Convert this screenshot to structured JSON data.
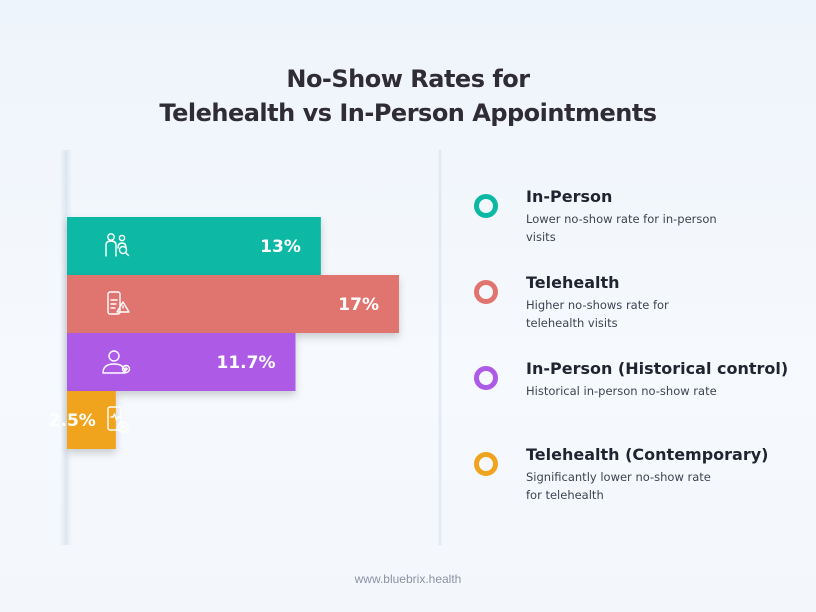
{
  "header": {
    "title_line1": "No-Show Rates for",
    "title_line2": "Telehealth vs In-Person Appointments"
  },
  "chart_data": {
    "type": "bar",
    "orientation": "horizontal",
    "categories": [
      "In-Person",
      "Telehealth",
      "In-Person (Historical control)",
      "Telehealth (Contemporary)"
    ],
    "values": [
      13,
      17,
      11.7,
      2.5
    ],
    "value_labels": [
      "13%",
      "17%",
      "11.7%",
      "2.5%"
    ],
    "colors": [
      "#0bb8a4",
      "#e0756f",
      "#ad5ae6",
      "#f0a31e"
    ],
    "icons": [
      "doctor-search-icon",
      "mobile-alert-icon",
      "doctor-icon",
      "mobile-medical-icon"
    ],
    "xlim": [
      0,
      17
    ],
    "grid": false,
    "legend_placement": "right"
  },
  "legend": {
    "items": [
      {
        "name": "In-Person",
        "desc": "Lower no-show rate for in-person visits",
        "color": "#0bb8a4"
      },
      {
        "name": "Telehealth",
        "desc": "Higher no-shows rate for telehealth visits",
        "color": "#e0756f"
      },
      {
        "name": "In-Person (Historical control)",
        "desc": "Historical in-person no-show rate",
        "color": "#ad5ae6"
      },
      {
        "name": "Telehealth (Contemporary)",
        "desc": "Significantly lower no-show rate for telehealth",
        "color": "#f0a31e"
      }
    ]
  },
  "footer": {
    "url": "www.bluebrix.health"
  }
}
